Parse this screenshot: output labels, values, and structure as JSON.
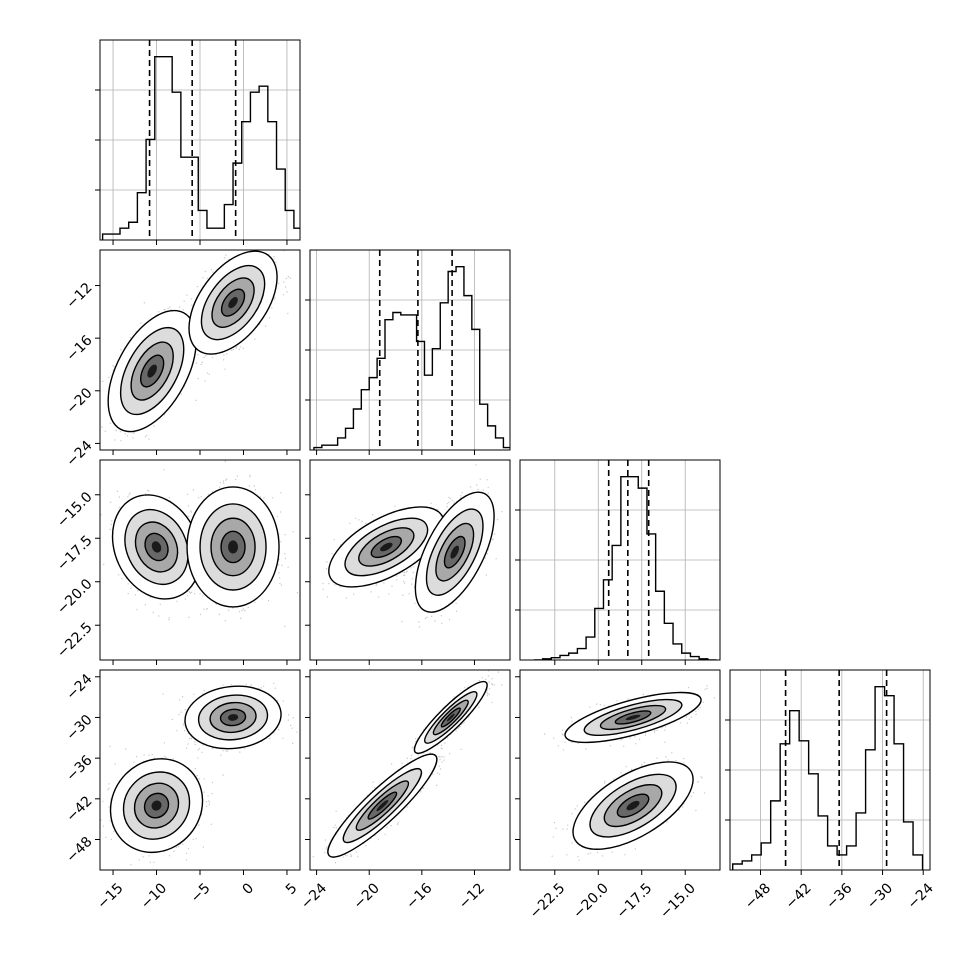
{
  "chart_data": {
    "type": "corner",
    "parameters": [
      {
        "ticks": [
          "−15",
          "−10",
          "−5",
          "0",
          "5"
        ],
        "tick_values": [
          -15,
          -10,
          -5,
          0,
          5
        ],
        "range": [
          -16.5,
          6.5
        ]
      },
      {
        "ticks": [
          "−24",
          "−20",
          "−16",
          "−12"
        ],
        "tick_values": [
          -24,
          -20,
          -16,
          -12
        ],
        "range": [
          -24.5,
          -9.3
        ]
      },
      {
        "ticks": [
          "−22.5",
          "−20.0",
          "−17.5",
          "−15.0"
        ],
        "tick_values": [
          -22.5,
          -20.0,
          -17.5,
          -15.0
        ],
        "range": [
          -24.5,
          -13.0
        ]
      },
      {
        "ticks": [
          "−48",
          "−42",
          "−36",
          "−30",
          "−24"
        ],
        "tick_values": [
          -48,
          -42,
          -36,
          -30,
          -24
        ],
        "range": [
          -52.5,
          -23.0
        ]
      }
    ],
    "marginals": [
      {
        "quantiles": [
          -10.8,
          -5.9,
          -0.9
        ],
        "bin_start": -16.2,
        "bin_width": 1.0,
        "counts": [
          2,
          2,
          4,
          6,
          16,
          34,
          62,
          62,
          50,
          28,
          28,
          10,
          4,
          4,
          12,
          26,
          40,
          50,
          52,
          40,
          24,
          10,
          4,
          2
        ]
      },
      {
        "quantiles": [
          -19.2,
          -16.3,
          -13.7
        ],
        "bin_start": -24.2,
        "bin_width": 0.6,
        "counts": [
          1,
          2,
          2,
          5,
          9,
          17,
          25,
          30,
          38,
          54,
          57,
          56,
          56,
          45,
          31,
          42,
          61,
          74,
          76,
          64,
          50,
          19,
          10,
          5,
          1
        ]
      },
      {
        "quantiles": [
          -19.4,
          -18.3,
          -17.1
        ],
        "bin_start": -23.7,
        "bin_width": 0.5,
        "counts": [
          0,
          1,
          2,
          4,
          6,
          10,
          20,
          45,
          70,
          100,
          160,
          160,
          150,
          110,
          60,
          32,
          14,
          6,
          3,
          1,
          0
        ]
      },
      {
        "quantiles": [
          -44.3,
          -36.4,
          -29.4
        ],
        "bin_start": -52.1,
        "bin_width": 1.4,
        "counts": [
          2,
          3,
          5,
          9,
          23,
          42,
          53,
          43,
          32,
          18,
          8,
          5,
          8,
          19,
          40,
          61,
          58,
          42,
          16,
          5
        ]
      }
    ],
    "joint_clusters": {
      "1-0": [
        {
          "mean": [
            -10.5,
            -18.5
          ],
          "sd": [
            2.2,
            2.0
          ],
          "rho": 0.5
        },
        {
          "mean": [
            -1.2,
            -13.3
          ],
          "sd": [
            2.2,
            1.7
          ],
          "rho": 0.5
        }
      ],
      "2-0": [
        {
          "mean": [
            -10.0,
            -18.0
          ],
          "sd": [
            2.2,
            1.3
          ],
          "rho": -0.2
        },
        {
          "mean": [
            -1.2,
            -18.0
          ],
          "sd": [
            2.3,
            1.5
          ],
          "rho": 0.0
        }
      ],
      "2-1": [
        {
          "mean": [
            -18.7,
            -18.0
          ],
          "sd": [
            1.9,
            1.0
          ],
          "rho": 0.6
        },
        {
          "mean": [
            -13.5,
            -18.3
          ],
          "sd": [
            1.3,
            1.5
          ],
          "rho": 0.6
        }
      ],
      "3-0": [
        {
          "mean": [
            -10.0,
            -43.0
          ],
          "sd": [
            2.3,
            3.0
          ],
          "rho": 0.1
        },
        {
          "mean": [
            -1.2,
            -30.0
          ],
          "sd": [
            2.4,
            2.0
          ],
          "rho": 0.1
        }
      ],
      "3-1": [
        {
          "mean": [
            -19.0,
            -43.0
          ],
          "sd": [
            1.8,
            3.3
          ],
          "rho": 0.9
        },
        {
          "mean": [
            -13.8,
            -30.0
          ],
          "sd": [
            1.2,
            2.3
          ],
          "rho": 0.9
        }
      ],
      "3-2": [
        {
          "mean": [
            -18.0,
            -30.0
          ],
          "sd": [
            1.7,
            1.6
          ],
          "rho": 0.7
        },
        {
          "mean": [
            -18.0,
            -43.0
          ],
          "sd": [
            1.5,
            2.8
          ],
          "rho": 0.6
        }
      ]
    },
    "grid": true,
    "xlabel": "",
    "ylabel": "",
    "title": ""
  }
}
